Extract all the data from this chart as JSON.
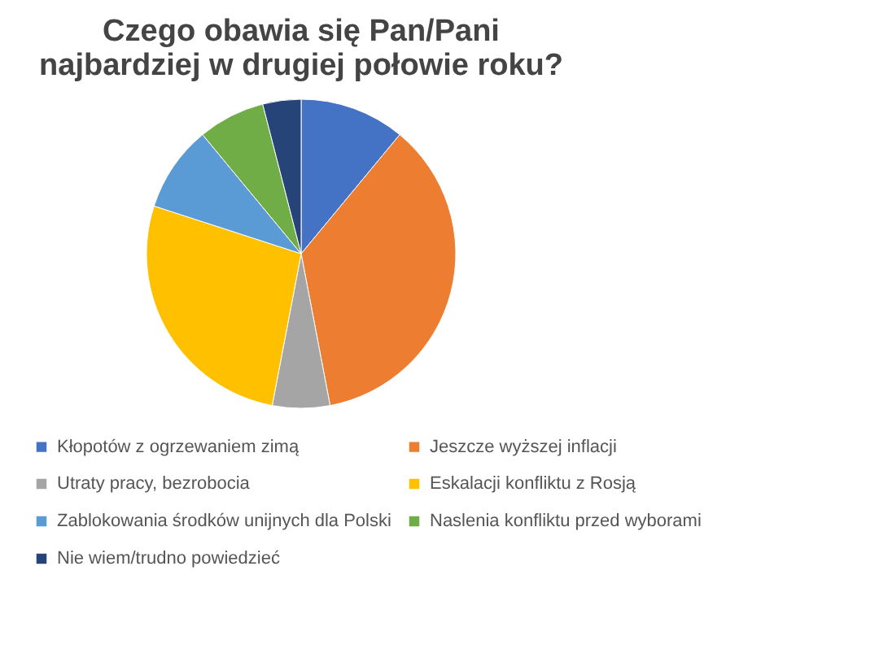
{
  "chart_data": {
    "type": "pie",
    "title": "Czego obawia się Pan/Pani najbardziej w drugiej połowie roku?",
    "categories": [
      "Kłopotów z ogrzewaniem zimą",
      "Jeszcze wyższej inflacji",
      "Utraty pracy, bezrobocia",
      "Eskalacji konfliktu z Rosją",
      "Zablokowania środków unijnych dla Polski",
      "Naslenia konfliktu przed wyborami",
      "Nie wiem/trudno powiedzieć"
    ],
    "values": [
      11,
      36,
      6,
      27,
      9,
      7,
      4
    ],
    "colors": [
      "#4472c4",
      "#ed7d31",
      "#a5a5a5",
      "#ffc000",
      "#5b9bd5",
      "#70ad47",
      "#264478"
    ],
    "legend": "bottom"
  }
}
